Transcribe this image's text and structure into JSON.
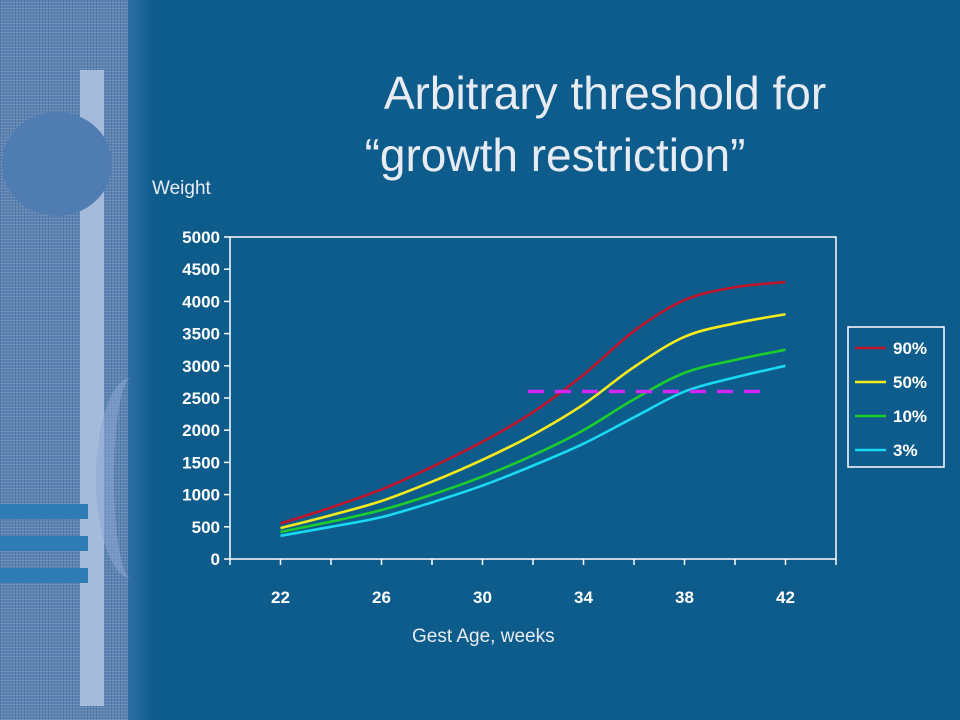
{
  "slide": {
    "title_line1": "Arbitrary threshold for",
    "title_line2": "“growth restriction”",
    "weight_label": "Weight",
    "x_axis_label": "Gest Age, weeks"
  },
  "chart_data": {
    "type": "line",
    "title": "",
    "xlabel": "Gest Age, weeks",
    "ylabel": "Weight",
    "x": [
      22,
      24,
      26,
      28,
      30,
      32,
      34,
      36,
      38,
      40,
      42
    ],
    "xticks": [
      22,
      26,
      30,
      34,
      38,
      42
    ],
    "xlim": [
      20,
      44
    ],
    "ylim": [
      0,
      5000
    ],
    "yticks": [
      0,
      500,
      1000,
      1500,
      2000,
      2500,
      3000,
      3500,
      4000,
      4500,
      5000
    ],
    "grid": false,
    "legend_position": "right",
    "series": [
      {
        "name": "90%",
        "color": "#c0142a",
        "values": [
          550,
          800,
          1080,
          1430,
          1820,
          2280,
          2860,
          3540,
          4020,
          4220,
          4300
        ]
      },
      {
        "name": "50%",
        "color": "#f5ea1c",
        "values": [
          480,
          680,
          900,
          1200,
          1540,
          1930,
          2400,
          2980,
          3450,
          3660,
          3800
        ]
      },
      {
        "name": "10%",
        "color": "#1ccd2c",
        "values": [
          420,
          580,
          760,
          1000,
          1280,
          1610,
          2000,
          2480,
          2890,
          3090,
          3250
        ]
      },
      {
        "name": "3%",
        "color": "#19d8f2",
        "values": [
          360,
          500,
          650,
          880,
          1140,
          1450,
          1790,
          2200,
          2600,
          2820,
          3000
        ]
      }
    ],
    "threshold": {
      "y": 2600,
      "x_start": 31.8,
      "x_end": 41,
      "color": "#d426f2",
      "style": "dashed"
    }
  }
}
